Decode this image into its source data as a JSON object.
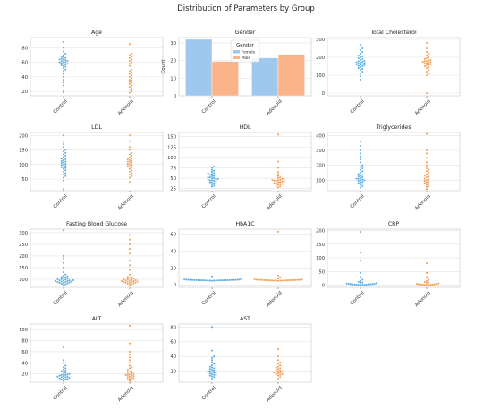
{
  "figure": {
    "title": "Distribution of Parameters by Group"
  },
  "colors": {
    "control": "#5dade2",
    "adenoid": "#f0a35e",
    "female_bar": "#9fc8ee",
    "male_bar": "#fbb48a",
    "grid": "#e3e3e3",
    "frame": "#cfcfcf"
  },
  "chart_data": [
    {
      "type": "scatter",
      "title": "Age",
      "categories": [
        "Control",
        "Adenoid"
      ],
      "yticks": [
        20,
        40,
        60,
        80
      ],
      "ylim": [
        14,
        94
      ],
      "series": [
        {
          "values": [
            19,
            22,
            28,
            32,
            36,
            40,
            44,
            48,
            50,
            52,
            54,
            55,
            56,
            57,
            58,
            58,
            59,
            60,
            60,
            61,
            62,
            62,
            63,
            64,
            64,
            65,
            66,
            67,
            68,
            70,
            72,
            75,
            80,
            88
          ]
        },
        {
          "values": [
            18,
            20,
            22,
            24,
            26,
            28,
            30,
            32,
            33,
            35,
            36,
            38,
            40,
            42,
            44,
            46,
            48,
            50,
            55,
            58,
            60,
            62,
            64,
            66,
            68,
            70,
            72,
            85
          ]
        }
      ]
    },
    {
      "type": "bar",
      "title": "Gender",
      "categories": [
        "Control",
        "Adenoid"
      ],
      "ylabel": "Count",
      "yticks": [
        0,
        10,
        20,
        30
      ],
      "ylim": [
        0,
        33
      ],
      "legend": {
        "title": "Gender",
        "position": "top-center",
        "entries": [
          "Female",
          "Male"
        ]
      },
      "series": [
        {
          "name": "Female",
          "values": [
            32,
            21.5
          ]
        },
        {
          "name": "Male",
          "values": [
            19.5,
            23.5
          ]
        }
      ]
    },
    {
      "type": "scatter",
      "title": "Total Cholesterol",
      "categories": [
        "Control",
        "Adenoid"
      ],
      "yticks": [
        0,
        100,
        200,
        300
      ],
      "ylim": [
        -15,
        310
      ],
      "series": [
        {
          "values": [
            75,
            95,
            110,
            120,
            130,
            135,
            140,
            145,
            150,
            152,
            155,
            158,
            160,
            162,
            165,
            168,
            170,
            172,
            175,
            178,
            180,
            185,
            190,
            195,
            200,
            205,
            210,
            220,
            230,
            240,
            250,
            270
          ]
        },
        {
          "values": [
            0,
            100,
            110,
            120,
            130,
            140,
            145,
            150,
            155,
            158,
            160,
            165,
            168,
            170,
            172,
            175,
            178,
            180,
            182,
            185,
            190,
            195,
            200,
            210,
            220,
            230,
            250,
            280
          ]
        }
      ]
    },
    {
      "type": "scatter",
      "title": "LDL",
      "categories": [
        "Control",
        "Adenoid"
      ],
      "yticks": [
        50,
        100,
        150,
        200
      ],
      "ylim": [
        10,
        210
      ],
      "series": [
        {
          "values": [
            15,
            45,
            55,
            60,
            65,
            70,
            75,
            80,
            85,
            88,
            90,
            92,
            95,
            98,
            100,
            102,
            105,
            108,
            110,
            112,
            115,
            118,
            120,
            125,
            130,
            135,
            140,
            145,
            150,
            160,
            170,
            180,
            200
          ]
        },
        {
          "values": [
            40,
            55,
            60,
            65,
            70,
            75,
            80,
            85,
            90,
            92,
            95,
            98,
            100,
            102,
            105,
            108,
            110,
            112,
            115,
            118,
            120,
            125,
            130,
            135,
            140,
            150,
            160,
            180,
            200
          ]
        }
      ]
    },
    {
      "type": "scatter",
      "title": "HDL",
      "categories": [
        "Control",
        "Adenoid"
      ],
      "yticks": [
        25,
        50,
        75,
        100,
        125,
        150
      ],
      "ylim": [
        20,
        160
      ],
      "series": [
        {
          "values": [
            30,
            32,
            35,
            38,
            40,
            40,
            42,
            44,
            45,
            45,
            46,
            48,
            48,
            50,
            50,
            52,
            52,
            55,
            55,
            58,
            58,
            60,
            62,
            62,
            65,
            68,
            70,
            75,
            78
          ]
        },
        {
          "values": [
            28,
            30,
            32,
            34,
            35,
            36,
            38,
            38,
            40,
            40,
            42,
            42,
            44,
            44,
            45,
            46,
            46,
            48,
            48,
            50,
            52,
            55,
            60,
            65,
            75,
            90,
            155
          ]
        }
      ]
    },
    {
      "type": "scatter",
      "title": "Triglycerides",
      "categories": [
        "Control",
        "Adenoid"
      ],
      "yticks": [
        100,
        200,
        300,
        400
      ],
      "ylim": [
        30,
        420
      ],
      "series": [
        {
          "values": [
            50,
            60,
            70,
            75,
            80,
            85,
            90,
            95,
            100,
            100,
            105,
            110,
            110,
            115,
            120,
            125,
            130,
            135,
            140,
            150,
            160,
            170,
            180,
            190,
            200,
            220,
            240,
            260,
            280,
            300,
            330,
            360
          ]
        },
        {
          "values": [
            40,
            55,
            60,
            70,
            75,
            80,
            85,
            90,
            95,
            100,
            105,
            110,
            120,
            125,
            130,
            140,
            150,
            160,
            170,
            180,
            200,
            220,
            250,
            280,
            300,
            410
          ]
        }
      ]
    },
    {
      "type": "scatter",
      "title": "Fasting Blood Glucose",
      "categories": [
        "Control",
        "Adenoid"
      ],
      "yticks": [
        100,
        150,
        200,
        250,
        300
      ],
      "ylim": [
        65,
        315
      ],
      "series": [
        {
          "values": [
            75,
            78,
            80,
            82,
            84,
            85,
            86,
            88,
            88,
            90,
            90,
            92,
            92,
            94,
            95,
            95,
            96,
            98,
            100,
            100,
            102,
            105,
            108,
            110,
            112,
            115,
            120,
            130,
            150,
            170,
            190,
            200,
            310
          ]
        },
        {
          "values": [
            75,
            78,
            80,
            82,
            84,
            85,
            86,
            88,
            88,
            90,
            90,
            92,
            92,
            94,
            95,
            96,
            98,
            100,
            100,
            102,
            105,
            108,
            110,
            120,
            140,
            160,
            180,
            210,
            230,
            250,
            270,
            290
          ]
        }
      ]
    },
    {
      "type": "scatter",
      "title": "HbA1C",
      "categories": [
        "Control",
        "Adenoid"
      ],
      "yticks": [
        0,
        20,
        40,
        60
      ],
      "ylim": [
        -3,
        66
      ],
      "series": [
        {
          "values": [
            4.8,
            5,
            5,
            5.1,
            5.1,
            5.2,
            5.2,
            5.3,
            5.3,
            5.3,
            5.4,
            5.4,
            5.4,
            5.5,
            5.5,
            5.5,
            5.6,
            5.6,
            5.6,
            5.7,
            5.7,
            5.8,
            5.8,
            5.9,
            6,
            6,
            6.1,
            6.2,
            6.5,
            7,
            10
          ]
        },
        {
          "values": [
            4.8,
            5,
            5,
            5.1,
            5.1,
            5.2,
            5.2,
            5.3,
            5.3,
            5.4,
            5.4,
            5.5,
            5.5,
            5.5,
            5.6,
            5.6,
            5.7,
            5.7,
            5.8,
            5.8,
            5.9,
            6,
            6.1,
            6.2,
            6.5,
            7.5,
            9,
            11,
            63
          ]
        }
      ]
    },
    {
      "type": "scatter",
      "title": "CRP",
      "categories": [
        "Control",
        "Adenoid"
      ],
      "yticks": [
        0,
        50,
        100,
        150,
        200
      ],
      "ylim": [
        -8,
        205
      ],
      "series": [
        {
          "values": [
            0.5,
            1,
            1,
            1.5,
            2,
            2,
            2.5,
            3,
            3,
            3.5,
            4,
            4,
            5,
            5,
            6,
            7,
            8,
            10,
            12,
            15,
            20,
            30,
            45,
            90,
            120,
            195
          ]
        },
        {
          "values": [
            0.5,
            1,
            1,
            1.5,
            2,
            2,
            2.5,
            3,
            3,
            4,
            5,
            6,
            8,
            10,
            12,
            15,
            20,
            30,
            45,
            80
          ]
        }
      ]
    },
    {
      "type": "scatter",
      "title": "ALT",
      "categories": [
        "Control",
        "Adenoid"
      ],
      "yticks": [
        20,
        40,
        60,
        80,
        100
      ],
      "ylim": [
        5,
        110
      ],
      "series": [
        {
          "values": [
            8,
            10,
            10,
            11,
            12,
            12,
            13,
            14,
            14,
            15,
            15,
            16,
            17,
            18,
            18,
            19,
            20,
            20,
            22,
            24,
            25,
            26,
            28,
            30,
            32,
            35,
            40,
            45,
            68
          ]
        },
        {
          "values": [
            7,
            9,
            10,
            11,
            12,
            13,
            14,
            15,
            16,
            17,
            18,
            18,
            19,
            20,
            21,
            22,
            24,
            25,
            27,
            30,
            32,
            35,
            40,
            45,
            50,
            55,
            60,
            75,
            107
          ]
        }
      ]
    },
    {
      "type": "scatter",
      "title": "AST",
      "categories": [
        "Control",
        "Adenoid"
      ],
      "yticks": [
        20,
        40,
        60,
        80
      ],
      "ylim": [
        5,
        84
      ],
      "series": [
        {
          "values": [
            10,
            12,
            13,
            14,
            15,
            15,
            16,
            17,
            18,
            18,
            19,
            20,
            20,
            21,
            22,
            23,
            24,
            25,
            26,
            28,
            30,
            32,
            35,
            38,
            40,
            48,
            80
          ]
        },
        {
          "values": [
            10,
            12,
            14,
            15,
            16,
            16,
            17,
            18,
            18,
            19,
            20,
            20,
            21,
            22,
            23,
            24,
            25,
            26,
            28,
            30,
            32,
            35,
            40,
            50
          ]
        }
      ]
    }
  ]
}
